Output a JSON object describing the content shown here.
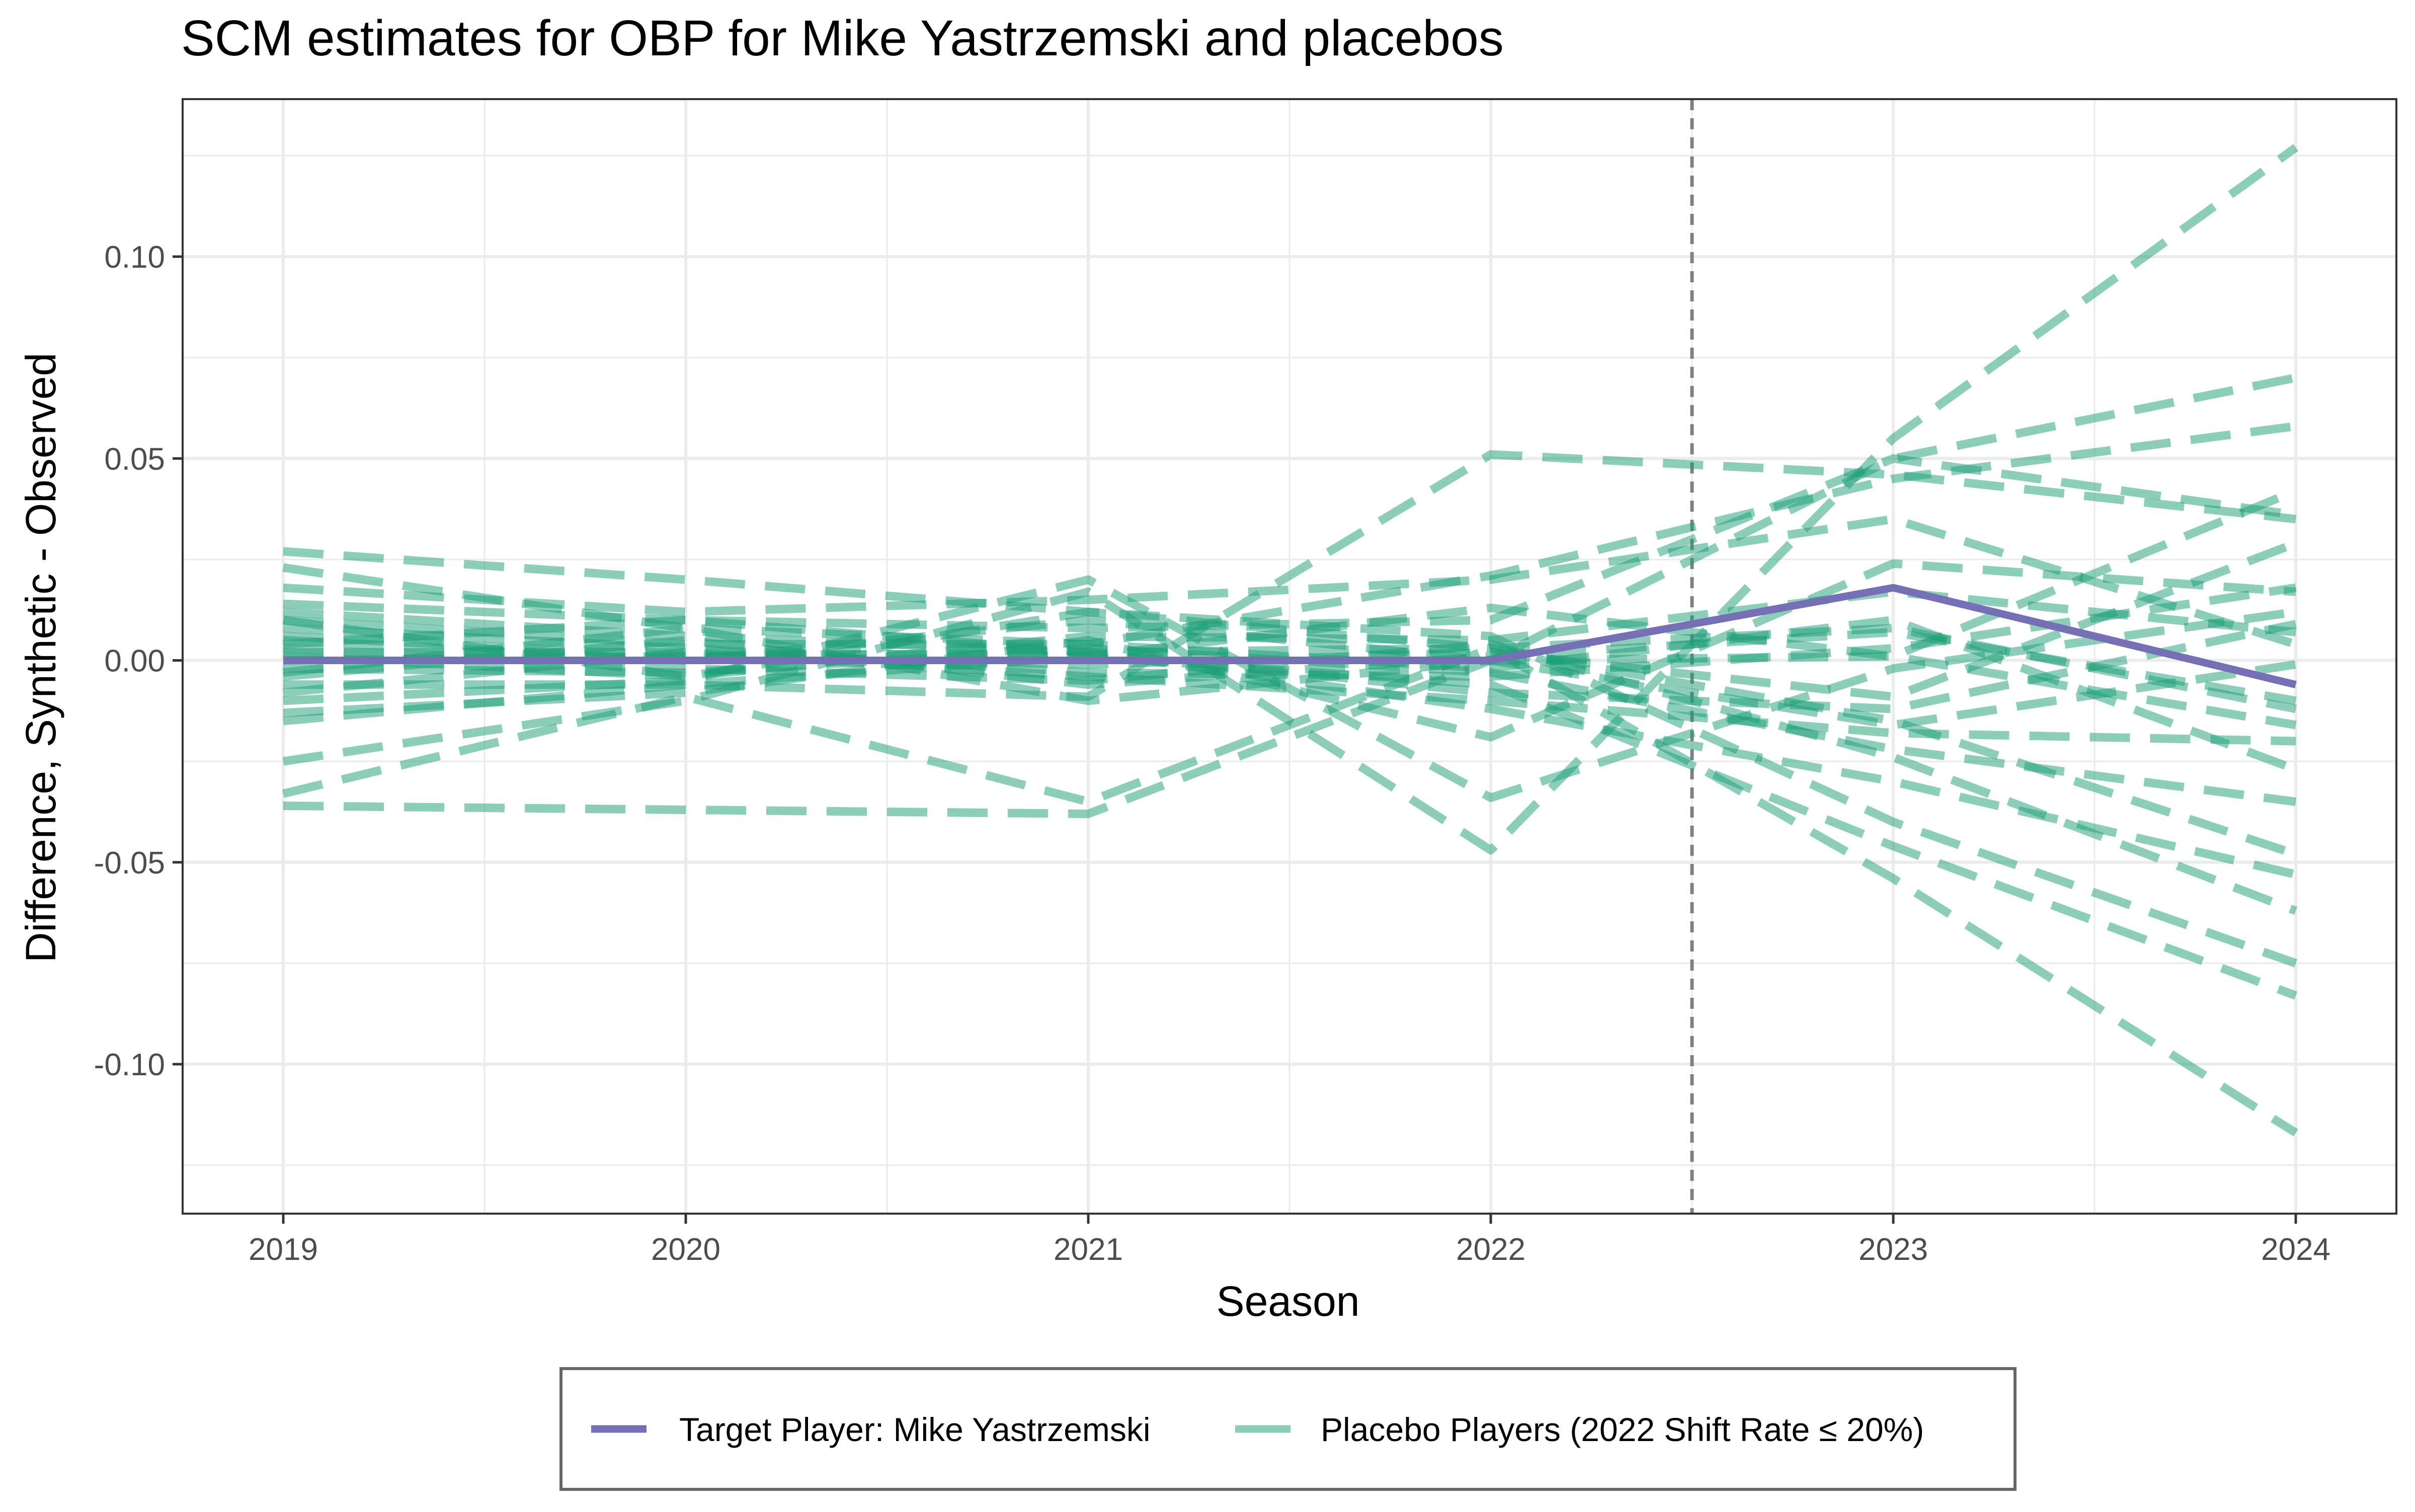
{
  "chart_data": {
    "type": "line",
    "title": "SCM estimates for OBP for Mike Yastrzemski and placebos",
    "xlabel": "Season",
    "ylabel": "Difference, Synthetic - Observed",
    "x": [
      2019,
      2020,
      2021,
      2022,
      2023,
      2024
    ],
    "x_ticks": [
      "2019",
      "2020",
      "2021",
      "2022",
      "2023",
      "2024"
    ],
    "y_ticks": [
      "-0.10",
      "-0.05",
      "0.00",
      "0.05",
      "0.10"
    ],
    "y_tick_values": [
      -0.1,
      -0.05,
      0.0,
      0.05,
      0.1
    ],
    "xlim": [
      2018.75,
      2024.25
    ],
    "ylim": [
      -0.137,
      0.139
    ],
    "grid": true,
    "legend_position": "bottom",
    "intervention_x": 2022.5,
    "colors": {
      "target": "#7570b3",
      "placebo": "#1b9e77",
      "vline": "#808080"
    },
    "target": {
      "name": "Target Player: Mike Yastrzemski",
      "values": [
        0.0,
        0.0,
        0.0,
        0.0,
        0.018,
        -0.006
      ]
    },
    "placebos": {
      "name": "Placebo Players (2022 Shift Rate ≤ 20%)",
      "series": [
        [
          0.027,
          0.02,
          0.012,
          0.003,
          -0.015,
          -0.048
        ],
        [
          0.023,
          0.008,
          0.004,
          0.021,
          0.045,
          0.058
        ],
        [
          0.018,
          0.012,
          0.015,
          0.02,
          0.035,
          0.004
        ],
        [
          0.014,
          0.01,
          0.008,
          0.01,
          0.05,
          0.036
        ],
        [
          0.012,
          0.006,
          0.002,
          0.003,
          0.008,
          -0.012
        ],
        [
          0.01,
          0.004,
          0.004,
          -0.002,
          0.01,
          -0.027
        ],
        [
          0.008,
          0.003,
          -0.003,
          -0.004,
          0.003,
          0.018
        ],
        [
          0.006,
          0.001,
          0.002,
          -0.008,
          -0.012,
          0.009
        ],
        [
          0.005,
          0.0,
          0.01,
          0.0,
          0.001,
          -0.016
        ],
        [
          0.003,
          -0.002,
          -0.005,
          0.004,
          -0.024,
          -0.062
        ],
        [
          0.002,
          0.002,
          0.001,
          -0.006,
          -0.046,
          -0.083
        ],
        [
          0.001,
          -0.004,
          0.006,
          0.005,
          0.017,
          0.007
        ],
        [
          0.0,
          0.001,
          -0.001,
          0.002,
          -0.009,
          0.029
        ],
        [
          -0.002,
          -0.003,
          0.003,
          -0.003,
          -0.022,
          -0.035
        ],
        [
          -0.004,
          0.005,
          -0.006,
          0.001,
          0.007,
          -0.01
        ],
        [
          -0.006,
          -0.006,
          0.001,
          0.013,
          0.001,
          0.042
        ],
        [
          -0.008,
          0.002,
          -0.004,
          -0.01,
          -0.018,
          -0.02
        ],
        [
          -0.01,
          -0.005,
          0.02,
          -0.034,
          -0.002,
          0.012
        ],
        [
          -0.013,
          -0.008,
          0.005,
          -0.019,
          0.024,
          0.017
        ],
        [
          -0.015,
          -0.006,
          -0.009,
          0.051,
          0.046,
          0.035
        ],
        [
          -0.025,
          -0.01,
          0.017,
          -0.047,
          0.055,
          0.127
        ],
        [
          -0.033,
          -0.009,
          -0.035,
          0.003,
          -0.054,
          -0.117
        ],
        [
          -0.036,
          -0.037,
          -0.038,
          0.0,
          0.05,
          0.07
        ],
        [
          0.01,
          -0.004,
          0.012,
          0.006,
          -0.04,
          -0.075
        ],
        [
          -0.003,
          0.008,
          -0.01,
          0.0,
          -0.016,
          -0.001
        ],
        [
          0.004,
          0.01,
          0.002,
          -0.012,
          -0.03,
          -0.053
        ]
      ]
    }
  }
}
